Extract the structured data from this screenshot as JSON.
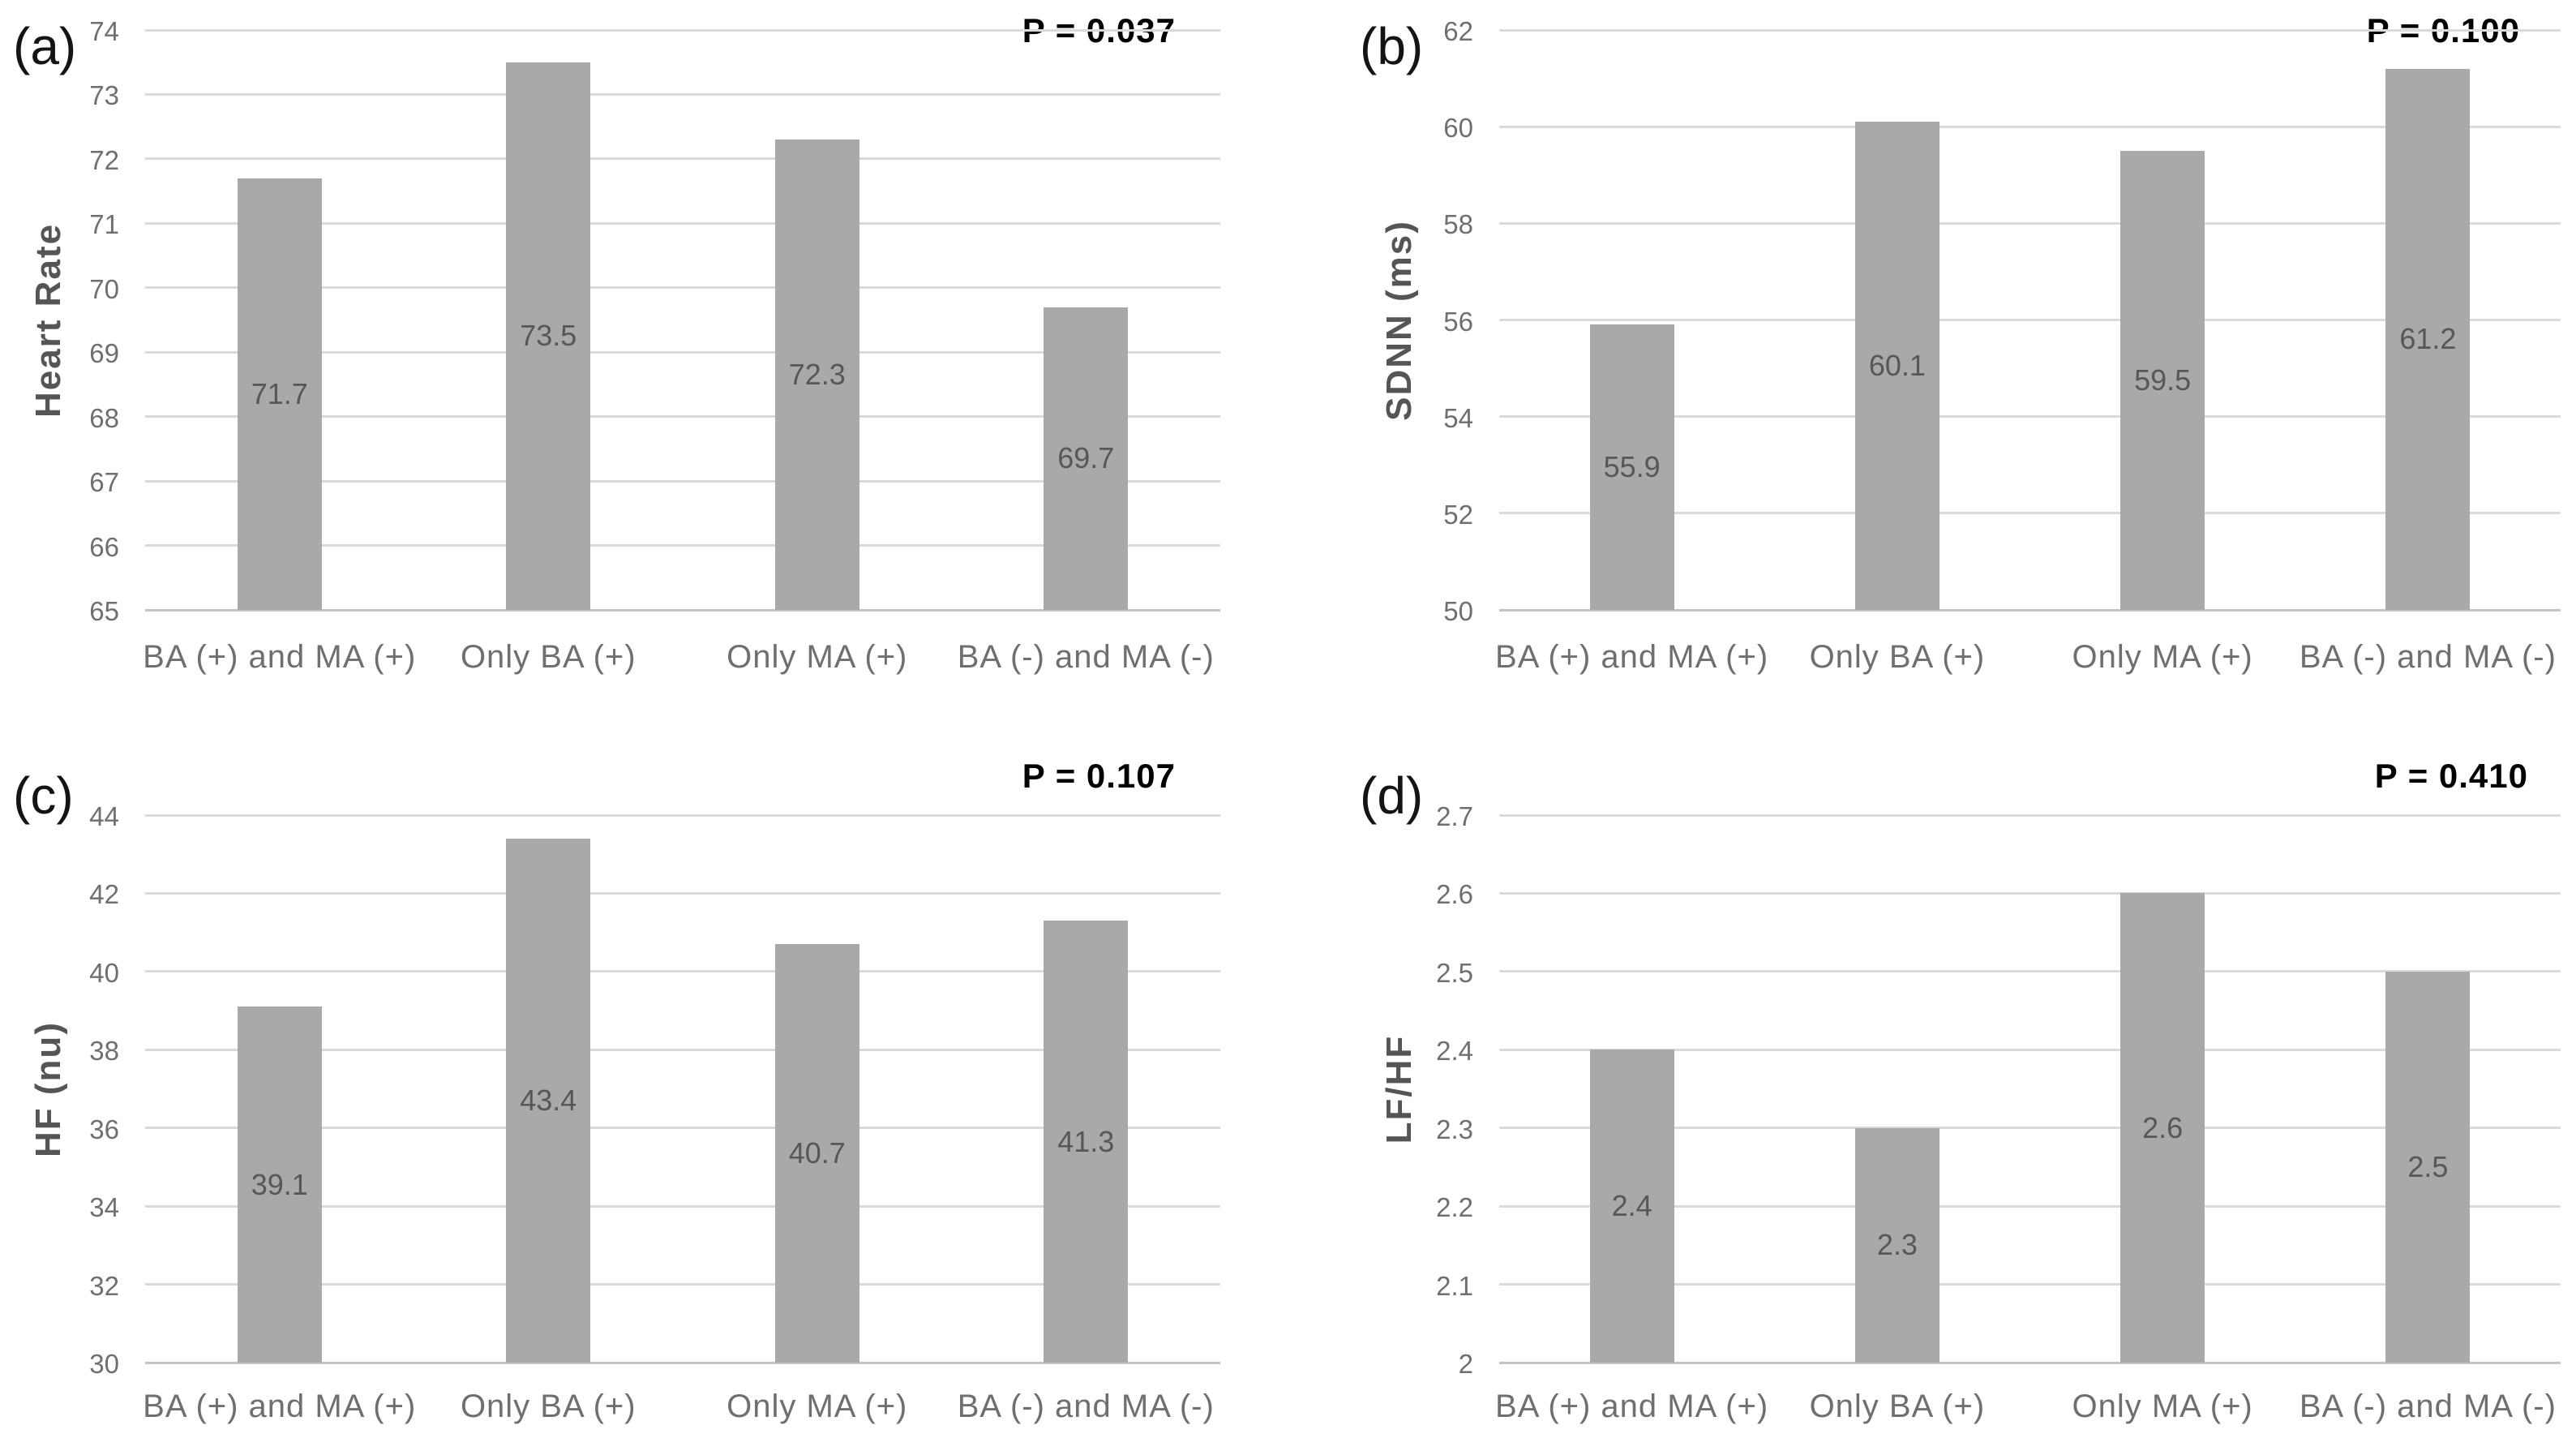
{
  "colors": {
    "bar": "#a9a9a9",
    "gridline": "#dadada",
    "axis_line": "#c3c3c3",
    "tick_text": "#6f6f6f",
    "value_text": "#575757",
    "axis_title_text": "#555555",
    "panel_letter_text": "#141414",
    "p_value_text": "#000000"
  },
  "chart_data": [
    {
      "type": "bar",
      "panel_letter": "(a)",
      "p_label": "P = 0.037",
      "ylabel": "Heart Rate",
      "xlabel": "",
      "categories": [
        "BA (+) and MA (+)",
        "Only BA (+)",
        "Only MA (+)",
        "BA (-) and MA (-)"
      ],
      "values": [
        71.7,
        73.5,
        72.3,
        69.7
      ],
      "value_labels": [
        "71.7",
        "73.5",
        "72.3",
        "69.7"
      ],
      "ylim": [
        65,
        74
      ],
      "yticks": [
        "65",
        "66",
        "67",
        "68",
        "69",
        "70",
        "71",
        "72",
        "73",
        "74"
      ],
      "grid": true,
      "legend": "none"
    },
    {
      "type": "bar",
      "panel_letter": "(b)",
      "p_label": "P = 0.100",
      "ylabel": "SDNN (ms)",
      "xlabel": "",
      "categories": [
        "BA (+) and MA (+)",
        "Only BA (+)",
        "Only MA (+)",
        "BA (-) and MA (-)"
      ],
      "values": [
        55.9,
        60.1,
        59.5,
        61.2
      ],
      "value_labels": [
        "55.9",
        "60.1",
        "59.5",
        "61.2"
      ],
      "ylim": [
        50,
        62
      ],
      "yticks": [
        "50",
        "52",
        "54",
        "56",
        "58",
        "60",
        "62"
      ],
      "grid": true,
      "legend": "none"
    },
    {
      "type": "bar",
      "panel_letter": "(c)",
      "p_label": "P = 0.107",
      "ylabel": "HF (nu)",
      "xlabel": "",
      "categories": [
        "BA (+) and MA (+)",
        "Only BA (+)",
        "Only MA (+)",
        "BA (-) and MA (-)"
      ],
      "values": [
        39.1,
        43.4,
        40.7,
        41.3
      ],
      "value_labels": [
        "39.1",
        "43.4",
        "40.7",
        "41.3"
      ],
      "ylim": [
        30,
        44
      ],
      "yticks": [
        "30",
        "32",
        "34",
        "36",
        "38",
        "40",
        "42",
        "44"
      ],
      "grid": true,
      "legend": "none"
    },
    {
      "type": "bar",
      "panel_letter": "(d)",
      "p_label": "P = 0.410",
      "ylabel": "LF/HF",
      "xlabel": "",
      "categories": [
        "BA (+) and MA (+)",
        "Only BA (+)",
        "Only MA (+)",
        "BA (-) and MA (-)"
      ],
      "values": [
        2.4,
        2.3,
        2.6,
        2.5
      ],
      "value_labels": [
        "2.4",
        "2.3",
        "2.6",
        "2.5"
      ],
      "ylim": [
        2,
        2.7
      ],
      "yticks": [
        "2",
        "2.1",
        "2.2",
        "2.3",
        "2.4",
        "2.5",
        "2.6",
        "2.7"
      ],
      "grid": true,
      "legend": "none"
    }
  ]
}
